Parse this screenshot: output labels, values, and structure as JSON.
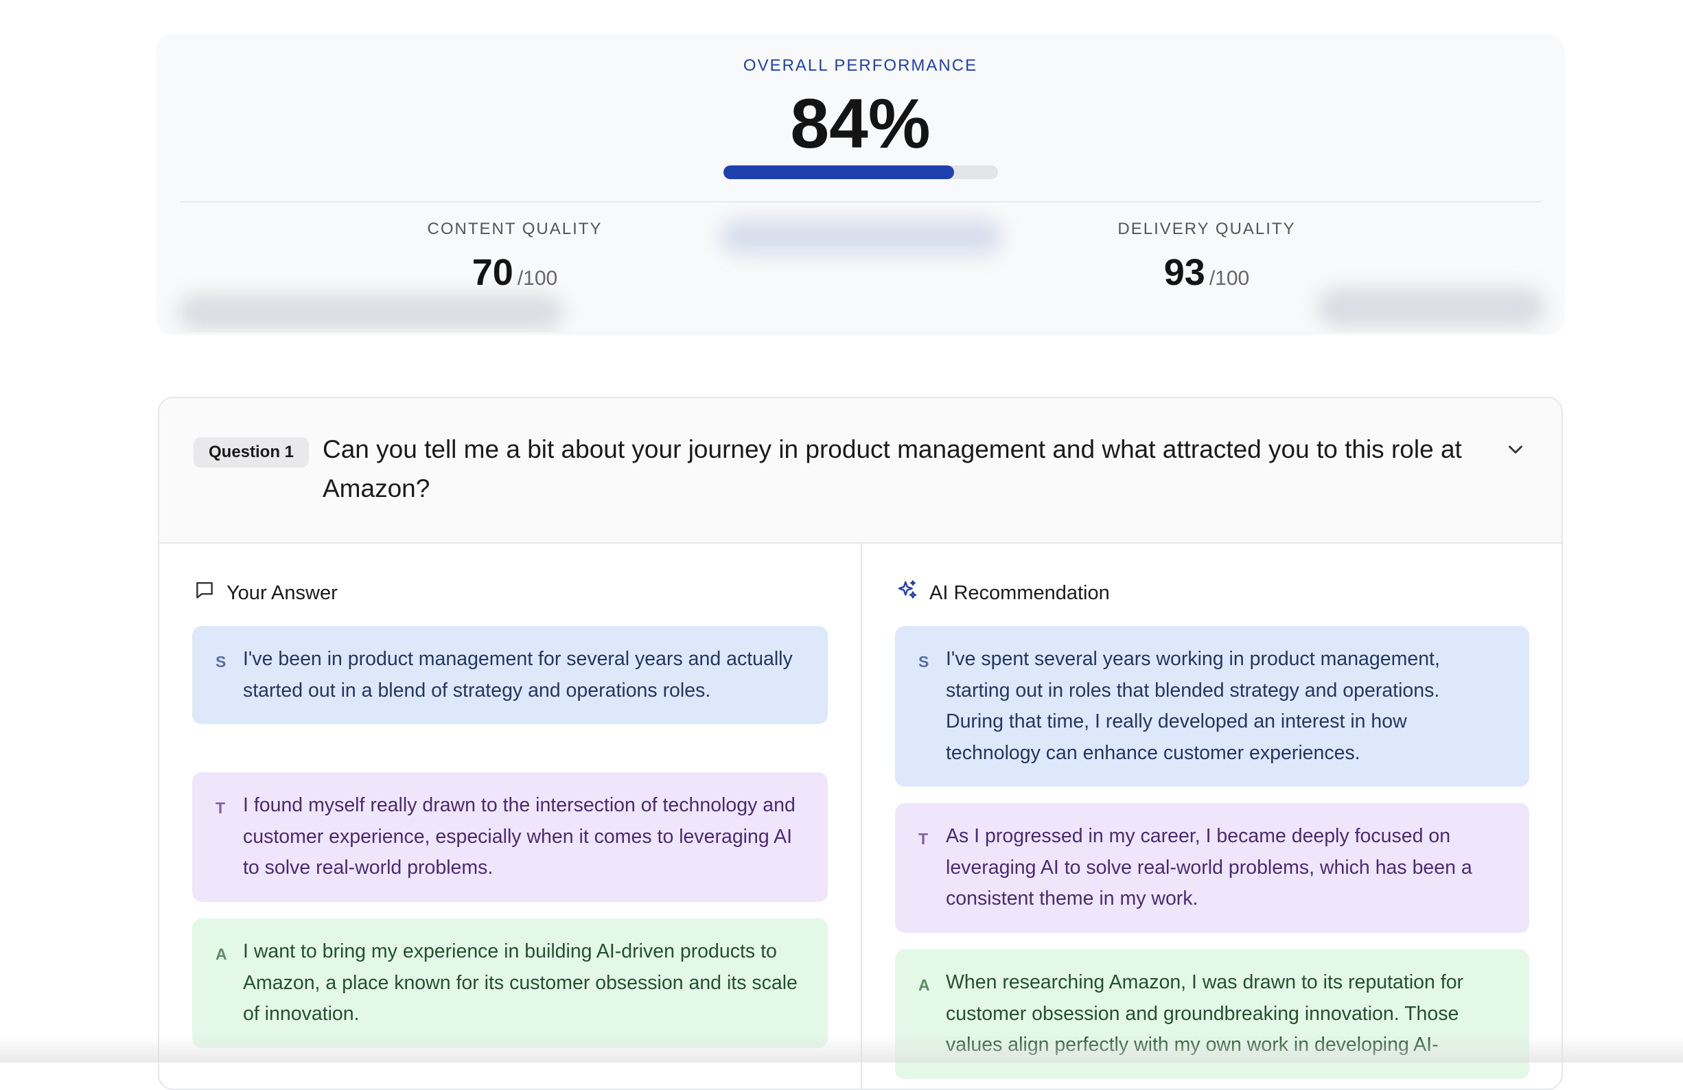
{
  "summary": {
    "overall_label": "OVERALL PERFORMANCE",
    "overall_value": "84%",
    "overall_progress": 0.84,
    "content": {
      "label": "CONTENT QUALITY",
      "score": "70",
      "max": "/100",
      "progress": 0.7
    },
    "delivery": {
      "label": "DELIVERY QUALITY",
      "score": "93",
      "max": "/100",
      "progress": 0.93
    }
  },
  "question": {
    "badge": "Question 1",
    "text": "Can you tell me a bit about your journey in product management and what attracted you to this role at Amazon?",
    "toggle_icon": "chevron-down-icon",
    "your_answer": {
      "title": "Your Answer",
      "icon": "chat-bubble-icon",
      "blocks": [
        {
          "letter": "S",
          "text": "I've been in product management for several years and actually started out in a blend of strategy and operations roles."
        },
        {
          "letter": "T",
          "text": "I found myself really drawn to the intersection of technology and customer experience, especially when it comes to leveraging AI to solve real-world problems."
        },
        {
          "letter": "A",
          "text": "I want to bring my experience in building AI-driven products to Amazon, a place known for its customer obsession and its scale of innovation."
        }
      ]
    },
    "ai_recommendation": {
      "title": "AI Recommendation",
      "icon": "sparkles-icon",
      "blocks": [
        {
          "letter": "S",
          "text": "I've spent several years working in product management, starting out in roles that blended strategy and operations. During that time, I really developed an interest in how technology can enhance customer experiences."
        },
        {
          "letter": "T",
          "text": "As I progressed in my career, I became deeply focused on leveraging AI to solve real-world problems, which has been a consistent theme in my work."
        },
        {
          "letter": "A",
          "text": "When researching Amazon, I was drawn to its reputation for customer obsession and groundbreaking innovation. Those values align perfectly with my own work in developing AI-"
        }
      ]
    }
  },
  "colors": {
    "accent": "#1e40af",
    "situation_bg": "#dde8fb",
    "task_bg": "#efe6fb",
    "action_bg": "#e3f8e7"
  }
}
